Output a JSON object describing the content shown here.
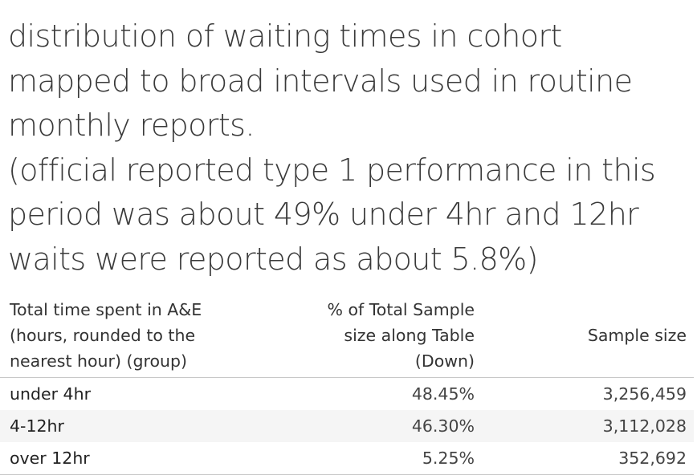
{
  "title_lines": [
    "distribution of waiting times in cohort",
    "mapped to broad intervals used in routine",
    "monthly reports.",
    "(official reported type 1 performance in this",
    "period was about 49% under 4hr and 12hr",
    "waits were reported as about 5.8%)"
  ],
  "table": {
    "headers": {
      "group": [
        "Total time spent in A&E",
        "(hours, rounded to the",
        "nearest hour) (group)"
      ],
      "pct": [
        "% of Total Sample",
        "size along Table",
        "(Down)"
      ],
      "size": "Sample size"
    },
    "rows": [
      {
        "group": "under 4hr",
        "pct": "48.45%",
        "size": "3,256,459"
      },
      {
        "group": "4-12hr",
        "pct": "46.30%",
        "size": "3,112,028"
      },
      {
        "group": "over 12hr",
        "pct": "5.25%",
        "size": "352,692"
      }
    ]
  }
}
